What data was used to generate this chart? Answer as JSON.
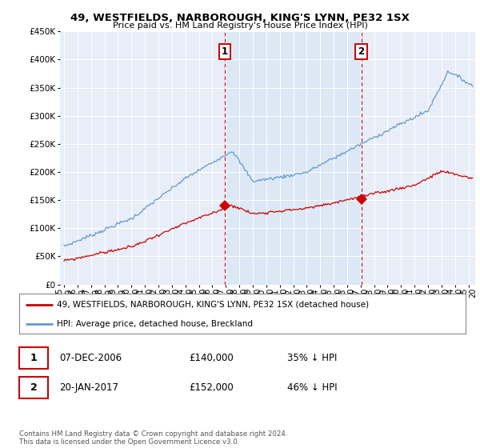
{
  "title": "49, WESTFIELDS, NARBOROUGH, KING'S LYNN, PE32 1SX",
  "subtitle": "Price paid vs. HM Land Registry's House Price Index (HPI)",
  "legend_red": "49, WESTFIELDS, NARBOROUGH, KING'S LYNN, PE32 1SX (detached house)",
  "legend_blue": "HPI: Average price, detached house, Breckland",
  "sale1_date": "07-DEC-2006",
  "sale1_price": "£140,000",
  "sale1_pct": "35% ↓ HPI",
  "sale1_year": 2006.92,
  "sale1_value": 140000,
  "sale2_date": "20-JAN-2017",
  "sale2_price": "£152,000",
  "sale2_pct": "46% ↓ HPI",
  "sale2_year": 2017.05,
  "sale2_value": 152000,
  "footer": "Contains HM Land Registry data © Crown copyright and database right 2024.\nThis data is licensed under the Open Government Licence v3.0.",
  "red_color": "#cc0000",
  "blue_color": "#6699cc",
  "shade_color": "#dce8f5",
  "vline_color": "#cc0000",
  "background_plot": "#e8eef8",
  "ylim": [
    0,
    450000
  ],
  "yticks": [
    0,
    50000,
    100000,
    150000,
    200000,
    250000,
    300000,
    350000,
    400000,
    450000
  ],
  "xlim_start": 1994.7,
  "xlim_end": 2025.5
}
